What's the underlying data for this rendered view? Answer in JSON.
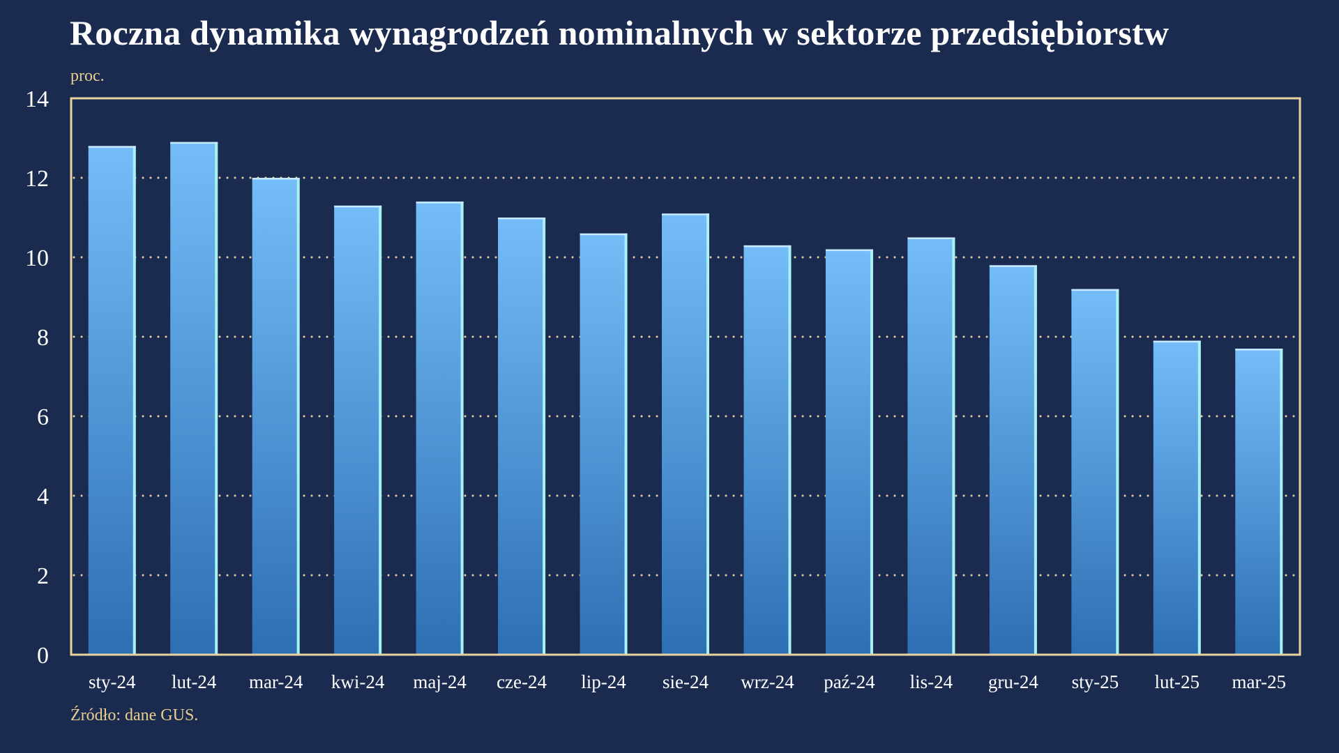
{
  "chart_data": {
    "type": "bar",
    "title": "Roczna dynamika wynagrodzeń nominalnych w sektorze przedsiębiorstw",
    "ylabel": "proc.",
    "xlabel": "",
    "source": "Źródło: dane GUS.",
    "categories": [
      "sty-24",
      "lut-24",
      "mar-24",
      "kwi-24",
      "maj-24",
      "cze-24",
      "lip-24",
      "sie-24",
      "wrz-24",
      "paź-24",
      "lis-24",
      "gru-24",
      "sty-25",
      "lut-25",
      "mar-25"
    ],
    "values": [
      12.8,
      12.9,
      12.0,
      11.3,
      11.4,
      11.0,
      10.6,
      11.1,
      10.3,
      10.2,
      10.5,
      9.8,
      9.2,
      7.9,
      7.7
    ],
    "ylim": [
      0,
      14
    ],
    "yticks": [
      0,
      2,
      4,
      6,
      8,
      10,
      12,
      14
    ],
    "grid": true,
    "legend": "none",
    "colors": {
      "background": "#1b2b4f",
      "bar_top": "#74bdf8",
      "bar_bottom": "#2d6fb3",
      "bar_edge": "#a8f0f2",
      "frame": "#e9d3a0",
      "grid": "#e9d3a0",
      "title": "#ffffff",
      "notes": "#e9cf8f"
    }
  }
}
